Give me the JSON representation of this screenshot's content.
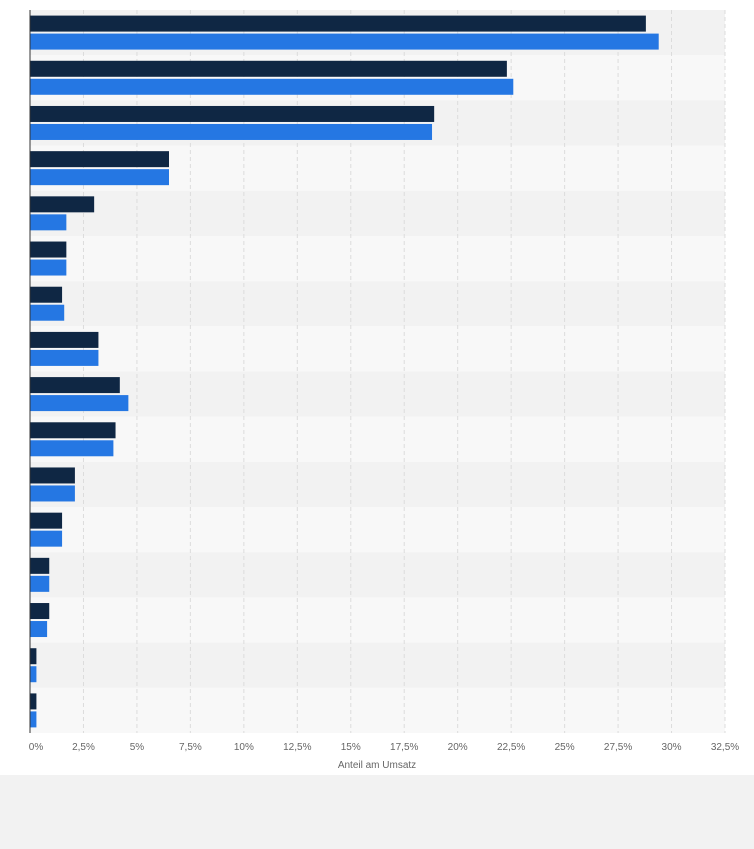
{
  "chart_data": {
    "type": "bar",
    "orientation": "horizontal",
    "categories": [
      "",
      "",
      "",
      "",
      "",
      "",
      "",
      "",
      "",
      "",
      "",
      "",
      "",
      "",
      "",
      ""
    ],
    "series": [
      {
        "color": "#0f2744",
        "values": [
          28.8,
          22.3,
          18.9,
          6.5,
          3.0,
          1.7,
          1.5,
          3.2,
          4.2,
          4.0,
          2.1,
          1.5,
          0.9,
          0.9,
          0.3,
          0.3
        ]
      },
      {
        "color": "#2577e3",
        "values": [
          29.4,
          22.6,
          18.8,
          6.5,
          1.7,
          1.7,
          1.6,
          3.2,
          4.6,
          3.9,
          2.1,
          1.5,
          0.9,
          0.8,
          0.3,
          0.3
        ]
      }
    ],
    "xlabel": "Anteil am Umsatz",
    "ylabel": "",
    "xlim": [
      0,
      32.5
    ],
    "xticks": [
      0,
      2.5,
      5,
      7.5,
      10,
      12.5,
      15,
      17.5,
      20,
      22.5,
      25,
      27.5,
      30,
      32.5
    ],
    "xtick_labels": [
      "0%",
      "2,5%",
      "5%",
      "7,5%",
      "10%",
      "12,5%",
      "15%",
      "17,5%",
      "20%",
      "22,5%",
      "25%",
      "27,5%",
      "30%",
      "32,5%"
    ],
    "grid": true,
    "legend": false
  }
}
